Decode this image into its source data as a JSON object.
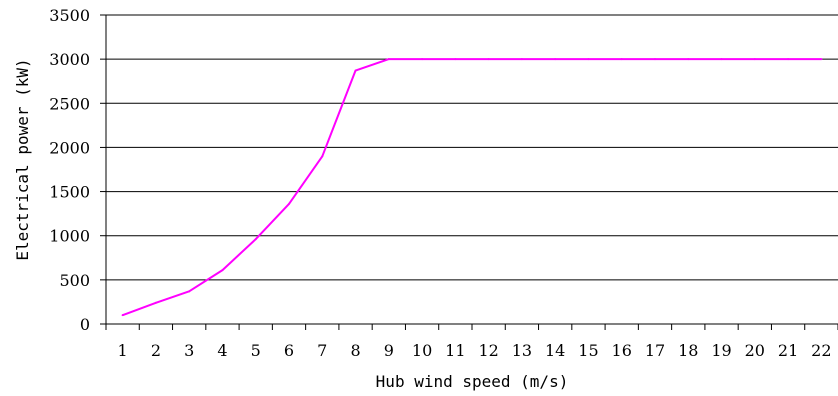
{
  "chart_data": {
    "type": "line",
    "title": "",
    "xlabel": "Hub wind speed (m/s)",
    "ylabel": "Electrical power (kW)",
    "x": [
      1,
      2,
      3,
      4,
      5,
      6,
      7,
      8,
      9,
      10,
      11,
      12,
      13,
      14,
      15,
      16,
      17,
      18,
      19,
      20,
      21,
      22
    ],
    "xlim": [
      0.5,
      22.5
    ],
    "ylim": [
      0,
      3500
    ],
    "yticks": [
      0,
      500,
      1000,
      1500,
      2000,
      2500,
      3000,
      3500
    ],
    "grid": "horizontal",
    "legend": "none",
    "series": [
      {
        "color": "#ff00ff",
        "values": [
          100,
          240,
          370,
          610,
          960,
          1360,
          1900,
          2870,
          3000,
          3000,
          3000,
          3000,
          3000,
          3000,
          3000,
          3000,
          3000,
          3000,
          3000,
          3000,
          3000,
          3000
        ]
      }
    ]
  }
}
